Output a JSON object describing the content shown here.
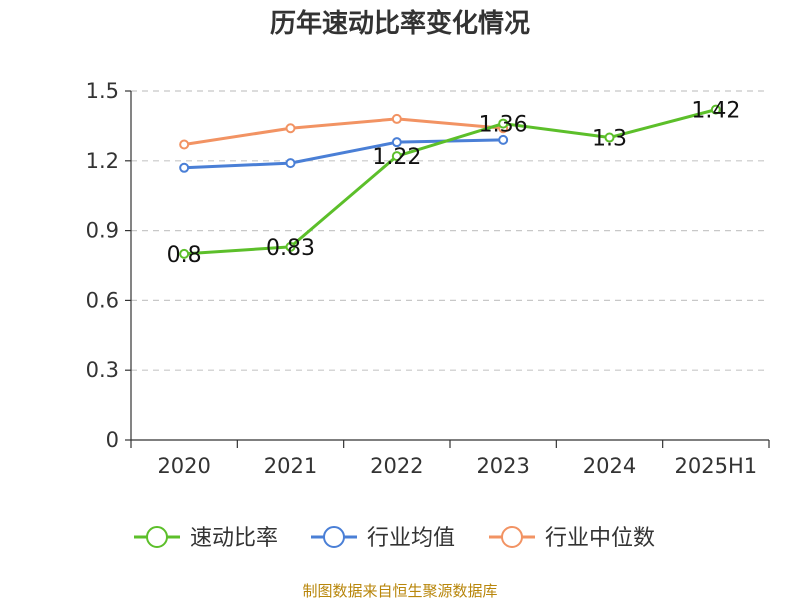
{
  "chart_data": {
    "type": "line",
    "title": "历年速动比率变化情况",
    "xlabel": "",
    "ylabel": "",
    "categories": [
      "2020",
      "2021",
      "2022",
      "2023",
      "2024",
      "2025H1"
    ],
    "ylim": [
      0,
      1.5
    ],
    "yticks": [
      "0",
      "0.3",
      "0.6",
      "0.9",
      "1.2",
      "1.5"
    ],
    "grid": true,
    "legend_position": "bottom",
    "series": [
      {
        "name": "速动比率",
        "color": "#5cbf2a",
        "values": [
          0.8,
          0.83,
          1.22,
          1.36,
          1.3,
          1.42
        ],
        "labels": [
          "0.8",
          "0.83",
          "1.22",
          "1.36",
          "1.3",
          "1.42"
        ]
      },
      {
        "name": "行业均值",
        "color": "#4a7fd6",
        "values": [
          1.17,
          1.19,
          1.28,
          1.29,
          null,
          null
        ]
      },
      {
        "name": "行业中位数",
        "color": "#f29363",
        "values": [
          1.27,
          1.34,
          1.38,
          1.34,
          null,
          null
        ]
      }
    ]
  },
  "source": "制图数据来自恒生聚源数据库"
}
